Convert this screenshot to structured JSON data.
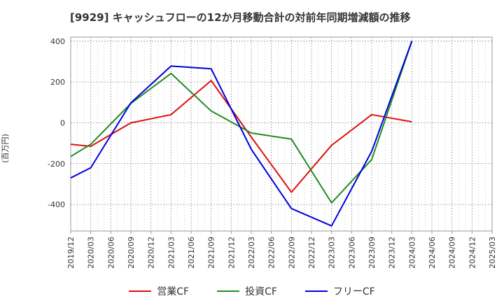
{
  "chart_data": {
    "type": "line",
    "title": "[9929]  キャッシュフローの12か月移動合計の対前年同期増減額の推移",
    "ylabel": "(百万円)",
    "xlabel": "",
    "ylim": [
      -530,
      420
    ],
    "yticks": [
      400,
      200,
      0,
      -200,
      -400
    ],
    "categories": [
      "2019/12",
      "2020/03",
      "2020/06",
      "2020/09",
      "2020/12",
      "2021/03",
      "2021/06",
      "2021/09",
      "2021/12",
      "2022/03",
      "2022/06",
      "2022/09",
      "2022/12",
      "2023/03",
      "2023/06",
      "2023/09",
      "2023/12",
      "2024/03",
      "2024/06",
      "2024/09",
      "2024/12",
      "2025/03"
    ],
    "grid": true,
    "legend_position": "bottom",
    "series": [
      {
        "name": "営業CF",
        "color": "#dd1111",
        "points": [
          [
            "2019/12",
            -105
          ],
          [
            "2020/03",
            -115
          ],
          [
            "2020/09",
            0
          ],
          [
            "2021/03",
            40
          ],
          [
            "2021/09",
            207
          ],
          [
            "2022/03",
            -70
          ],
          [
            "2022/09",
            -340
          ],
          [
            "2023/03",
            -110
          ],
          [
            "2023/09",
            40
          ],
          [
            "2024/03",
            5
          ]
        ]
      },
      {
        "name": "投資CF",
        "color": "#228b22",
        "points": [
          [
            "2019/12",
            -165
          ],
          [
            "2020/03",
            -105
          ],
          [
            "2020/09",
            95
          ],
          [
            "2021/03",
            242
          ],
          [
            "2021/09",
            58
          ],
          [
            "2022/03",
            -50
          ],
          [
            "2022/09",
            -80
          ],
          [
            "2023/03",
            -392
          ],
          [
            "2023/09",
            -180
          ],
          [
            "2024/03",
            400
          ]
        ]
      },
      {
        "name": "フリーCF",
        "color": "#0000dd",
        "points": [
          [
            "2019/12",
            -270
          ],
          [
            "2020/03",
            -220
          ],
          [
            "2020/09",
            98
          ],
          [
            "2021/03",
            278
          ],
          [
            "2021/09",
            265
          ],
          [
            "2022/03",
            -130
          ],
          [
            "2022/09",
            -420
          ],
          [
            "2023/03",
            -505
          ],
          [
            "2023/09",
            -140
          ],
          [
            "2024/03",
            400
          ]
        ]
      }
    ]
  }
}
